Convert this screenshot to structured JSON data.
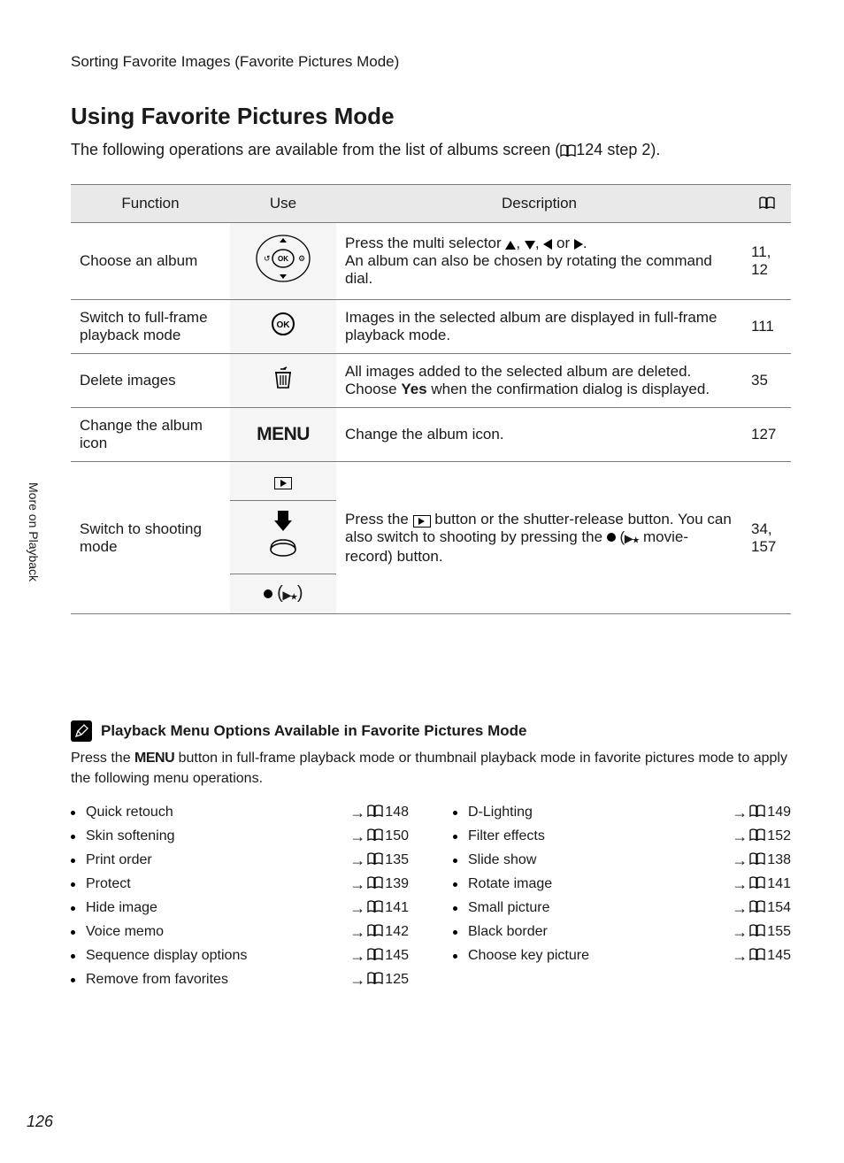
{
  "breadcrumb": "Sorting Favorite Images (Favorite Pictures Mode)",
  "heading": "Using Favorite Pictures Mode",
  "intro_prefix": "The following operations are available from the list of albums screen (",
  "intro_ref": "124 step 2).",
  "side_tab": "More on Playback",
  "headers": {
    "function": "Function",
    "use": "Use",
    "description": "Description"
  },
  "rows": [
    {
      "func": "Choose an album",
      "use_kind": "selector",
      "desc_plain_prefix": "Press the multi selector ",
      "desc_plain_suffix": ".\nAn album can also be chosen by rotating the command dial.",
      "page": "11, 12"
    },
    {
      "func": "Switch to full-frame playback mode",
      "use_kind": "ok",
      "desc": "Images in the selected album are displayed in full-frame playback mode.",
      "page": "111"
    },
    {
      "func": "Delete images",
      "use_kind": "trash",
      "desc_html": "All images added to the selected album are deleted. Choose <b>Yes</b> when the confirmation dialog is displayed.",
      "page": "35"
    },
    {
      "func": "Change the album icon",
      "use_kind": "menu",
      "desc": "Change the album icon.",
      "page": "127"
    },
    {
      "func": "Switch to shooting mode",
      "use_kind": "switch",
      "desc_prefix": "Press the ",
      "desc_mid": " button or the shutter-release button. You can also switch to shooting by pressing the ",
      "desc_suffix": " movie-record) button.",
      "page": "34, 157"
    }
  ],
  "menu_options": {
    "title": "Playback Menu Options Available in Favorite Pictures Mode",
    "desc_prefix": "Press the ",
    "desc_suffix": " button in full-frame playback mode or thumbnail playback mode in favorite pictures mode to apply the following menu operations.",
    "menu_word": "MENU",
    "left": [
      {
        "label": "Quick retouch",
        "page": "148"
      },
      {
        "label": "Skin softening",
        "page": "150"
      },
      {
        "label": "Print order",
        "page": "135"
      },
      {
        "label": "Protect",
        "page": "139"
      },
      {
        "label": "Hide image",
        "page": "141"
      },
      {
        "label": "Voice memo",
        "page": "142"
      },
      {
        "label": "Sequence display options",
        "page": "145"
      },
      {
        "label": "Remove from favorites",
        "page": "125"
      }
    ],
    "right": [
      {
        "label": "D-Lighting",
        "page": "149"
      },
      {
        "label": "Filter effects",
        "page": "152"
      },
      {
        "label": "Slide show",
        "page": "138"
      },
      {
        "label": "Rotate image",
        "page": "141"
      },
      {
        "label": "Small picture",
        "page": "154"
      },
      {
        "label": "Black border",
        "page": "155"
      },
      {
        "label": "Choose key picture",
        "page": "145"
      }
    ]
  },
  "page_number": "126",
  "colors": {
    "page_bg": "#ffffff",
    "outer_bg": "#e8e8e8",
    "header_bg": "#e9e9e9",
    "border": "#7a7a7a",
    "text": "#1a1a1a"
  },
  "typography": {
    "body_pt": 17,
    "heading_pt": 26,
    "small_pt": 16
  }
}
